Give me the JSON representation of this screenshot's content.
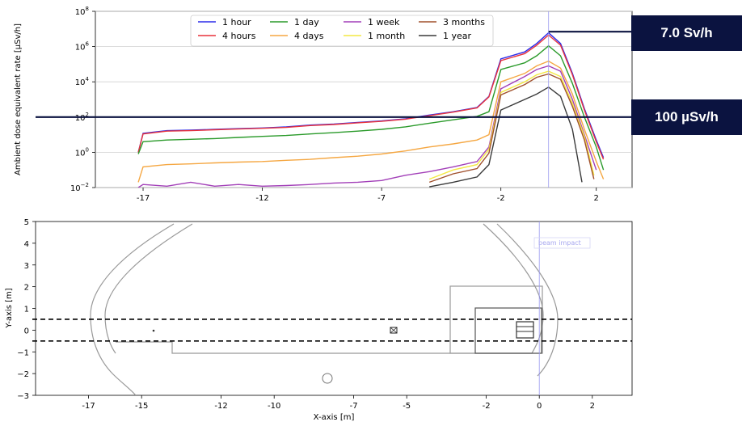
{
  "chart_data": [
    {
      "type": "line",
      "title": "",
      "xlabel": "",
      "ylabel": "Ambient dose equivalent rate [µSv/h]",
      "yscale": "log",
      "xlim": [
        -19,
        3.5
      ],
      "ylim": [
        0.01,
        100000000
      ],
      "xticks": [
        -17,
        -12,
        -7,
        -2,
        2
      ],
      "xtick_labels": [
        "-17",
        "-12",
        "-7",
        "-2",
        "2"
      ],
      "yticks": [
        0.01,
        1,
        100,
        10000,
        1000000,
        100000000
      ],
      "ytick_labels": [
        {
          "base": "10",
          "exp": "−2"
        },
        {
          "base": "10",
          "exp": "0"
        },
        {
          "base": "10",
          "exp": "2"
        },
        {
          "base": "10",
          "exp": "4"
        },
        {
          "base": "10",
          "exp": "6"
        },
        {
          "base": "10",
          "exp": "8"
        }
      ],
      "grid": "horizontal",
      "legend_position": "top-center",
      "legend_columns": 4,
      "reference_vline_x": 0,
      "series": [
        {
          "name": "1 hour",
          "color": "#2b2bea",
          "x": [
            -17.2,
            -17,
            -16,
            -15,
            -14,
            -13,
            -12,
            -11,
            -10,
            -9,
            -8,
            -7,
            -6,
            -5,
            -4,
            -3,
            -2.5,
            -2,
            -1,
            -0.5,
            0,
            0.5,
            1,
            1.5,
            2,
            2.3
          ],
          "y": [
            1,
            12,
            17,
            18,
            20,
            22,
            24,
            28,
            35,
            40,
            50,
            60,
            80,
            130,
            200,
            350,
            1500,
            200000,
            500000,
            1500000,
            6000000,
            1500000,
            30000,
            300,
            5,
            0.5
          ]
        },
        {
          "name": "4 hours",
          "color": "#e8323c",
          "x": [
            -17.2,
            -17,
            -16,
            -15,
            -14,
            -13,
            -12,
            -11,
            -10,
            -9,
            -8,
            -7,
            -6,
            -5,
            -4,
            -3,
            -2.5,
            -2,
            -1,
            -0.5,
            0,
            0.5,
            1,
            1.5,
            2,
            2.3
          ],
          "y": [
            1,
            11,
            16,
            17,
            19,
            21,
            23,
            26,
            33,
            38,
            47,
            57,
            76,
            120,
            190,
            330,
            1400,
            160000,
            400000,
            1200000,
            4500000,
            1200000,
            25000,
            250,
            4,
            0.4
          ]
        },
        {
          "name": "1 day",
          "color": "#2a9a2a",
          "x": [
            -17.2,
            -17,
            -16,
            -15,
            -14,
            -13,
            -12,
            -11,
            -10,
            -9,
            -8,
            -7,
            -6,
            -5,
            -4,
            -3,
            -2.5,
            -2,
            -1,
            -0.5,
            0,
            0.5,
            1,
            1.5,
            2,
            2.3
          ],
          "y": [
            0.8,
            4,
            5,
            5.5,
            6,
            7,
            8,
            9,
            11,
            13,
            16,
            20,
            28,
            45,
            70,
            110,
            200,
            50000,
            120000,
            300000,
            1100000,
            300000,
            8000,
            100,
            2,
            0.1
          ]
        },
        {
          "name": "4 days",
          "color": "#f5a742",
          "x": [
            -17.2,
            -17,
            -16,
            -15,
            -14,
            -13,
            -12,
            -11,
            -10,
            -9,
            -8,
            -7,
            -6,
            -5,
            -4,
            -3,
            -2.5,
            -2,
            -1,
            -0.5,
            0,
            0.5,
            1,
            1.5,
            2,
            2.3
          ],
          "y": [
            0.02,
            0.15,
            0.2,
            0.22,
            0.25,
            0.28,
            0.3,
            0.35,
            0.4,
            0.5,
            0.6,
            0.8,
            1.2,
            2,
            3,
            5,
            10,
            10000,
            30000,
            80000,
            150000,
            60000,
            2000,
            20,
            0.3,
            0.03
          ]
        },
        {
          "name": "1 week",
          "color": "#a23fb8",
          "x": [
            -17.2,
            -17,
            -16,
            -15,
            -14,
            -13,
            -12,
            -11,
            -10,
            -9,
            -8,
            -7,
            -6,
            -5,
            -4,
            -3,
            -2.5,
            -2,
            -1,
            -0.5,
            0,
            0.5,
            1,
            1.5,
            2
          ],
          "y": [
            0.01,
            0.015,
            0.012,
            0.02,
            0.012,
            0.015,
            0.012,
            0.013,
            0.015,
            0.018,
            0.02,
            0.025,
            0.05,
            0.08,
            0.15,
            0.3,
            2,
            4000,
            20000,
            50000,
            80000,
            40000,
            1000,
            10,
            0.1
          ]
        },
        {
          "name": "1 month",
          "color": "#f4e842",
          "x": [
            -5,
            -4,
            -3,
            -2.5,
            -2,
            -1,
            -0.5,
            0,
            0.5,
            1,
            1.5,
            1.9
          ],
          "y": [
            0.03,
            0.1,
            0.2,
            1.5,
            2500,
            10000,
            25000,
            40000,
            20000,
            600,
            8,
            0.05
          ]
        },
        {
          "name": "3 months",
          "color": "#a0502c",
          "x": [
            -5,
            -4,
            -3,
            -2.5,
            -2,
            -1,
            -0.5,
            0,
            0.5,
            1,
            1.5,
            1.9
          ],
          "y": [
            0.02,
            0.06,
            0.12,
            0.9,
            1800,
            7000,
            18000,
            28000,
            14000,
            400,
            5,
            0.03
          ]
        },
        {
          "name": "1 year",
          "color": "#3a3a3a",
          "x": [
            -5,
            -4,
            -3,
            -2.5,
            -2,
            -1,
            -0.5,
            0,
            0.5,
            1,
            1.4
          ],
          "y": [
            0.011,
            0.02,
            0.04,
            0.2,
            250,
            1000,
            2000,
            5000,
            1500,
            20,
            0.02
          ]
        }
      ],
      "reference_lines": [
        {
          "label": "7.0 Sv/h",
          "y": 7000000,
          "x_start": 0
        },
        {
          "label": "100 µSv/h",
          "y": 100,
          "x_start": -19
        }
      ]
    },
    {
      "type": "line",
      "title": "",
      "xlabel": "X-axis [m]",
      "ylabel": "Y-axis [m]",
      "xlim": [
        -19,
        3.5
      ],
      "ylim": [
        -3,
        5
      ],
      "xticks": [
        -17,
        -15,
        -12,
        -10,
        -7,
        -5,
        -2,
        0,
        2
      ],
      "xtick_labels": [
        "-17",
        "-15",
        "-12",
        "-10",
        "-7",
        "-5",
        "-2",
        "0",
        "2"
      ],
      "yticks": [
        -3,
        -2,
        -1,
        0,
        1,
        2,
        3,
        4,
        5
      ],
      "ytick_labels": [
        "−3",
        "−2",
        "−1",
        "0",
        "1",
        "2",
        "3",
        "4",
        "5"
      ],
      "grid": "none",
      "annotation": "beam impact",
      "beam_y": [
        0.5,
        -0.5
      ],
      "reference_vline_x": 0
    }
  ]
}
